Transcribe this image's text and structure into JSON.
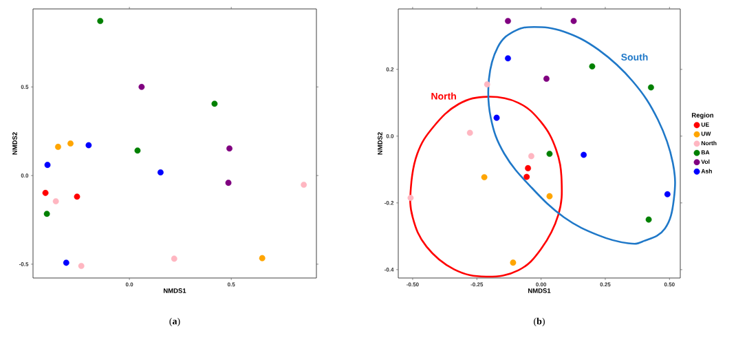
{
  "chart_data": [
    {
      "type": "scatter",
      "xlabel": "NMDS1",
      "ylabel": "NMDS2",
      "xlim": [
        -0.473,
        0.918
      ],
      "ylim": [
        -0.578,
        0.94
      ],
      "xticks": [
        {
          "value": 0,
          "label": "0.0"
        },
        {
          "value": 0.5,
          "label": "0.5"
        }
      ],
      "yticks": [
        {
          "value": -0.5,
          "label": "-0.5"
        },
        {
          "value": 0,
          "label": "0.0"
        },
        {
          "value": 0.5,
          "label": "0.5"
        }
      ],
      "grid": false,
      "legend": false,
      "series": [
        {
          "color": "#ff0000",
          "x": [
            -0.412,
            -0.257
          ],
          "values": [
            -0.098,
            -0.119
          ]
        },
        {
          "color": "#ffa500",
          "x": [
            -0.35,
            -0.289,
            0.652
          ],
          "values": [
            0.162,
            0.181,
            -0.466
          ]
        },
        {
          "color": "#ffb6c1",
          "x": [
            -0.361,
            -0.236,
            0.22,
            0.856
          ],
          "values": [
            -0.145,
            -0.51,
            -0.469,
            -0.052
          ]
        },
        {
          "color": "#008000",
          "x": [
            -0.143,
            0.04,
            0.418,
            -0.405
          ],
          "values": [
            0.872,
            0.141,
            0.405,
            -0.216
          ]
        },
        {
          "color": "#800080",
          "x": [
            0.06,
            0.491,
            0.486
          ],
          "values": [
            0.5,
            0.153,
            -0.041
          ]
        },
        {
          "color": "#0000ff",
          "x": [
            -0.402,
            -0.2,
            0.153,
            -0.31
          ],
          "values": [
            0.06,
            0.171,
            0.018,
            -0.492
          ]
        }
      ],
      "annotations": [
        "(**a**)"
      ]
    },
    {
      "type": "scatter",
      "xlabel": "NMDS1",
      "ylabel": "NMDS2",
      "xlim": [
        -0.556,
        0.542
      ],
      "ylim": [
        -0.425,
        0.381
      ],
      "xticks": [
        {
          "value": -0.5,
          "label": "-0.50"
        },
        {
          "value": -0.25,
          "label": "-0.25"
        },
        {
          "value": 0,
          "label": "0.00"
        },
        {
          "value": 0.25,
          "label": "0.25"
        },
        {
          "value": 0.5,
          "label": "0.50"
        }
      ],
      "yticks": [
        {
          "value": -0.4,
          "label": "-0.4"
        },
        {
          "value": -0.2,
          "label": "-0.2"
        },
        {
          "value": 0,
          "label": "0.0"
        },
        {
          "value": 0.2,
          "label": "0.2"
        }
      ],
      "grid": false,
      "legend": "right",
      "legend_title": "Region",
      "series": [
        {
          "name": "UE",
          "color": "#ff0000",
          "x": [
            -0.051,
            -0.056
          ],
          "values": [
            -0.096,
            -0.122
          ]
        },
        {
          "name": "UW",
          "color": "#ffa500",
          "x": [
            -0.221,
            0.033,
            -0.109
          ],
          "values": [
            -0.123,
            -0.18,
            -0.379
          ]
        },
        {
          "name": "North",
          "color": "#ffb6c1",
          "x": [
            -0.21,
            -0.277,
            -0.038,
            -0.508
          ],
          "values": [
            0.155,
            0.01,
            -0.06,
            -0.185
          ]
        },
        {
          "name": "BA",
          "color": "#008000",
          "x": [
            0.199,
            0.428,
            0.033,
            0.419
          ],
          "values": [
            0.209,
            0.146,
            -0.053,
            -0.25
          ]
        },
        {
          "name": "Vol",
          "color": "#800080",
          "x": [
            -0.129,
            0.127,
            0.021
          ],
          "values": [
            0.345,
            0.345,
            0.172
          ]
        },
        {
          "name": "Ash",
          "color": "#0000ff",
          "x": [
            -0.129,
            -0.173,
            0.166,
            0.492
          ],
          "values": [
            0.233,
            0.055,
            -0.056,
            -0.174
          ]
        }
      ],
      "annotations": [
        "North",
        "South",
        "(**b**)"
      ]
    }
  ]
}
